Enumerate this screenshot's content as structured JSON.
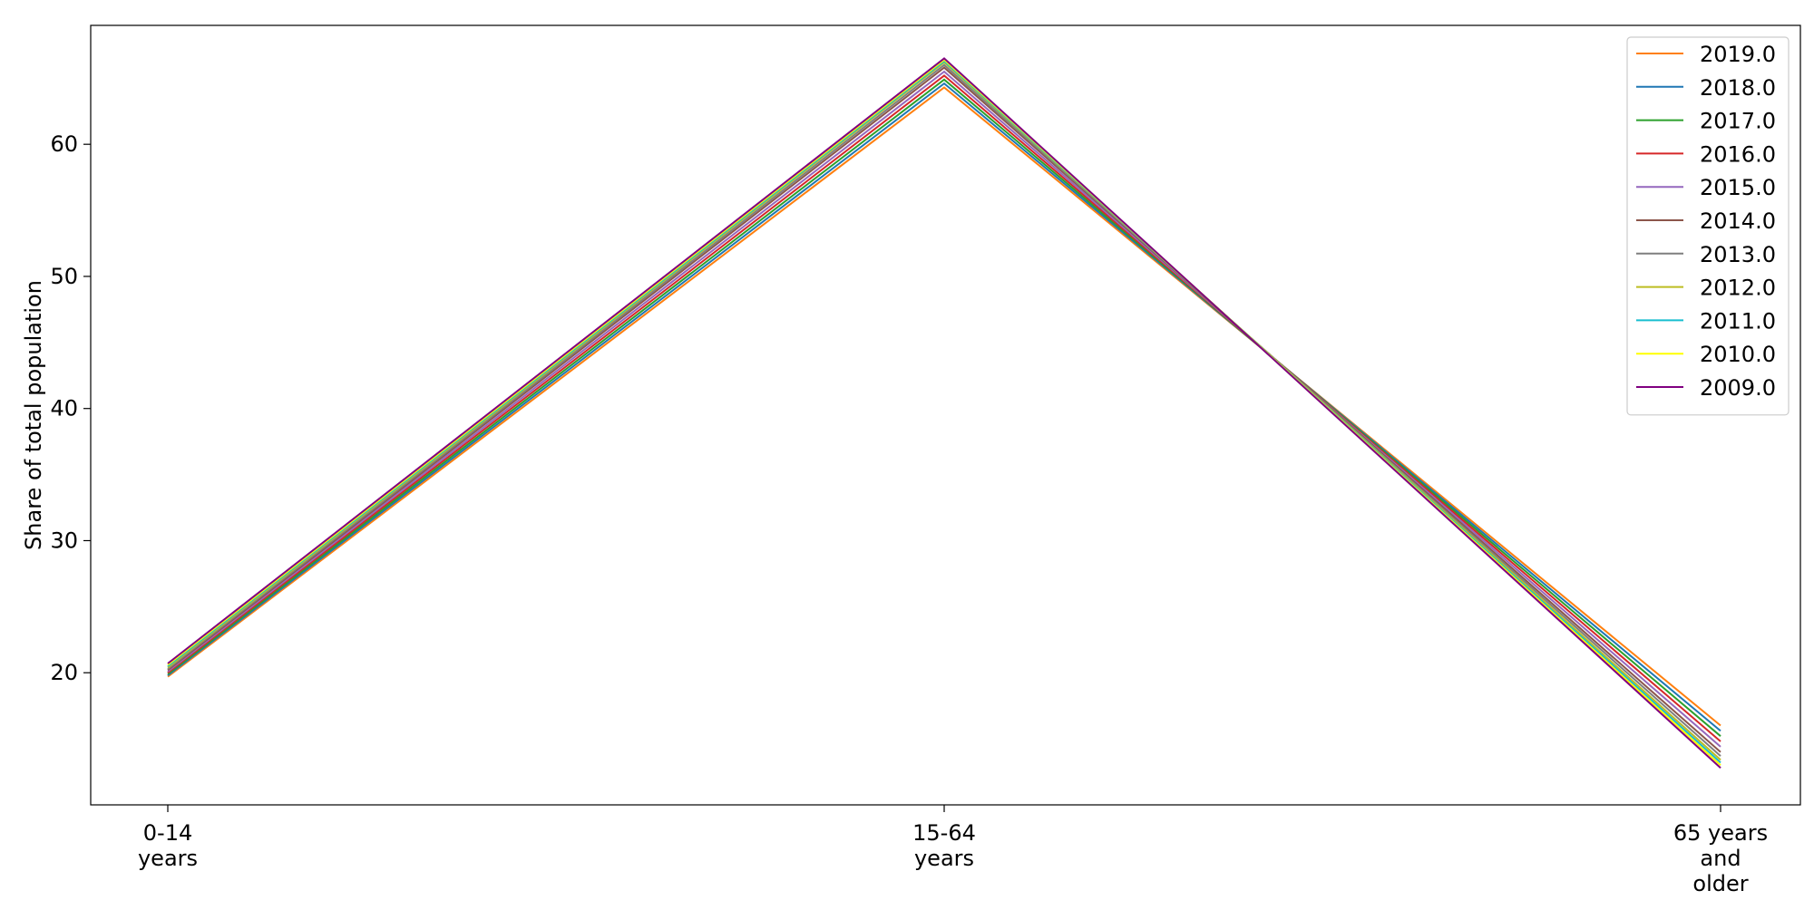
{
  "chart_data": {
    "type": "line",
    "title": "",
    "xlabel": "",
    "ylabel": "Share of total population",
    "categories": [
      [
        "0-14",
        "years"
      ],
      [
        "15-64",
        "years"
      ],
      [
        "65 years",
        "and",
        "older"
      ]
    ],
    "ylim": [
      10.0,
      69.0
    ],
    "yticks": [
      20,
      30,
      40,
      50,
      60
    ],
    "grid": false,
    "legend_position": "top-right",
    "series": [
      {
        "name": "2019.0",
        "color": "#ff7f0e",
        "values": [
          19.7,
          64.3,
          16.0
        ]
      },
      {
        "name": "2018.0",
        "color": "#1f77b4",
        "values": [
          19.8,
          64.6,
          15.6
        ]
      },
      {
        "name": "2017.0",
        "color": "#2ca02c",
        "values": [
          19.9,
          64.9,
          15.2
        ]
      },
      {
        "name": "2016.0",
        "color": "#d62728",
        "values": [
          20.0,
          65.2,
          14.8
        ]
      },
      {
        "name": "2015.0",
        "color": "#9467bd",
        "values": [
          20.1,
          65.5,
          14.4
        ]
      },
      {
        "name": "2014.0",
        "color": "#8c564b",
        "values": [
          20.2,
          65.8,
          14.0
        ]
      },
      {
        "name": "2013.0",
        "color": "#7f7f7f",
        "values": [
          20.3,
          66.0,
          13.7
        ]
      },
      {
        "name": "2012.0",
        "color": "#bcbd22",
        "values": [
          20.4,
          66.2,
          13.4
        ]
      },
      {
        "name": "2011.0",
        "color": "#17becf",
        "values": [
          20.5,
          66.3,
          13.2
        ]
      },
      {
        "name": "2010.0",
        "color": "#ffff00",
        "values": [
          20.6,
          66.4,
          13.0
        ]
      },
      {
        "name": "2009.0",
        "color": "#800080",
        "values": [
          20.7,
          66.5,
          12.8
        ]
      }
    ]
  }
}
